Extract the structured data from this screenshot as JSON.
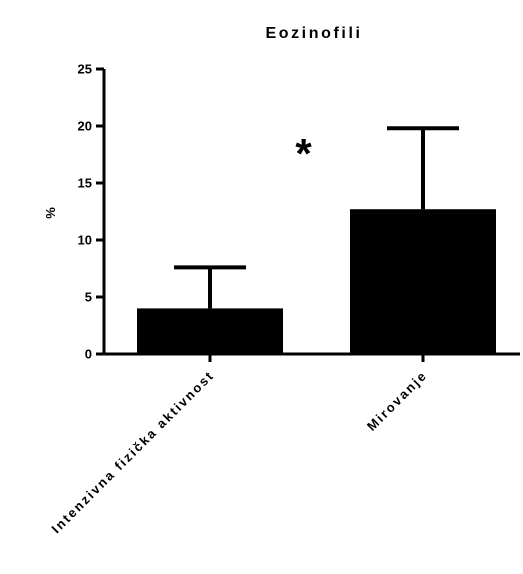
{
  "chart_data": {
    "type": "bar",
    "title": "Eozinofili",
    "ylabel": "%",
    "xlabel": "",
    "categories": [
      "Intenzivna fizička aktivnost",
      "Mirovanje"
    ],
    "values": [
      4.0,
      12.7
    ],
    "error_upper": [
      7.6,
      19.8
    ],
    "ylim": [
      0,
      25
    ],
    "yticks": [
      0,
      5,
      10,
      15,
      20,
      25
    ],
    "bar_color": "#000000",
    "grid": false,
    "legend": "none",
    "annotations": [
      {
        "text": "*",
        "between": [
          0,
          1
        ],
        "level": 18.5
      }
    ]
  }
}
